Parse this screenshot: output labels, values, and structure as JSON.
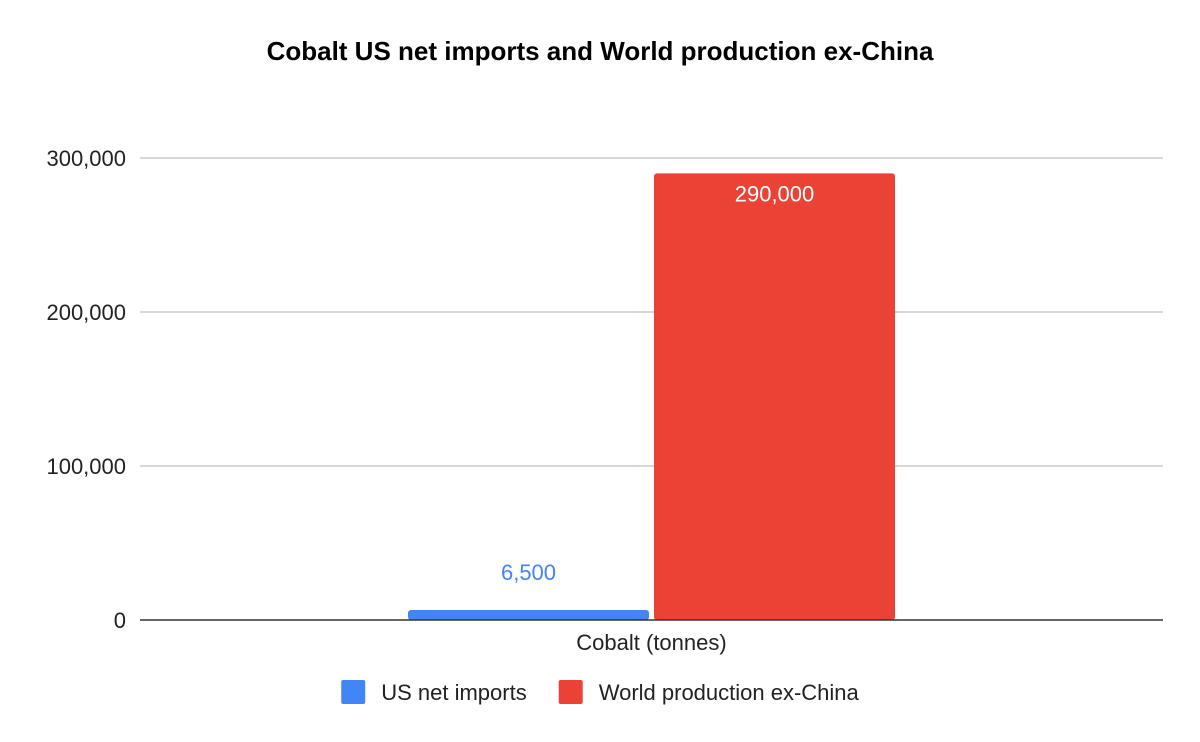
{
  "chart_data": {
    "type": "bar",
    "title": "Cobalt US net imports and World production ex-China",
    "xlabel": "",
    "ylabel": "",
    "categories": [
      "Cobalt (tonnes)"
    ],
    "series": [
      {
        "name": "US net imports",
        "values": [
          6500
        ],
        "labels": [
          "6,500"
        ],
        "color": "#4285f4",
        "label_color": "#4285f4",
        "label_position": "above"
      },
      {
        "name": "World production ex-China",
        "values": [
          290000
        ],
        "labels": [
          "290,000"
        ],
        "color": "#ea4335",
        "label_color": "#ffffff",
        "label_position": "inside-top"
      }
    ],
    "ylim": [
      0,
      300000
    ],
    "yticks": [
      {
        "value": 0,
        "label": "0"
      },
      {
        "value": 100000,
        "label": "100,000"
      },
      {
        "value": 200000,
        "label": "200,000"
      },
      {
        "value": 300000,
        "label": "300,000"
      }
    ],
    "grid": true,
    "legend": {
      "position": "bottom"
    }
  }
}
